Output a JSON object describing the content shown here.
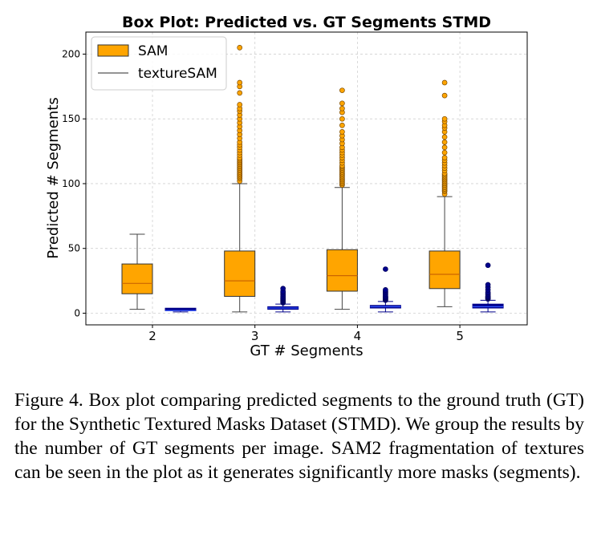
{
  "chart_data": {
    "type": "box",
    "title": "Box Plot: Predicted vs. GT Segments STMD",
    "xlabel": "GT # Segments",
    "ylabel": "Predicted # Segments",
    "categories": [
      "2",
      "3",
      "4",
      "5"
    ],
    "ylim": [
      -9,
      217
    ],
    "yticks": [
      0,
      50,
      100,
      150,
      200
    ],
    "grid": true,
    "legend": {
      "placement": "top-left",
      "entries": [
        "SAM",
        "textureSAM"
      ]
    },
    "series": [
      {
        "name": "SAM",
        "color": "#FFA500",
        "edge_color": "#333333",
        "flier_color": "#FFA500",
        "boxes": [
          {
            "category": "2",
            "whislo": 3,
            "q1": 15,
            "med": 23,
            "q3": 38,
            "whishi": 61,
            "fliers": []
          },
          {
            "category": "3",
            "whislo": 1,
            "q1": 13,
            "med": 25,
            "q3": 48,
            "whishi": 100,
            "fliers": [
              102,
              104,
              105,
              106,
              107,
              108,
              109,
              110,
              111,
              112,
              113,
              114,
              115,
              116,
              117,
              118,
              119,
              120,
              122,
              124,
              126,
              128,
              130,
              132,
              135,
              138,
              141,
              144,
              147,
              150,
              153,
              156,
              158,
              161,
              170,
              175,
              178,
              205
            ]
          },
          {
            "category": "4",
            "whislo": 3,
            "q1": 17,
            "med": 29,
            "q3": 49,
            "whishi": 97,
            "fliers": [
              99,
              100,
              101,
              102,
              103,
              104,
              105,
              106,
              107,
              108,
              109,
              110,
              111,
              112,
              113,
              114,
              116,
              118,
              120,
              122,
              124,
              126,
              128,
              131,
              134,
              137,
              140,
              145,
              150,
              155,
              158,
              162,
              172
            ]
          },
          {
            "category": "5",
            "whislo": 5,
            "q1": 19,
            "med": 30,
            "q3": 48,
            "whishi": 90,
            "fliers": [
              92,
              94,
              95,
              96,
              97,
              98,
              99,
              100,
              101,
              102,
              103,
              104,
              105,
              106,
              107,
              108,
              110,
              112,
              114,
              116,
              118,
              120,
              124,
              128,
              132,
              136,
              140,
              143,
              145,
              148,
              150,
              168,
              178
            ]
          }
        ]
      },
      {
        "name": "textureSAM",
        "color": "#00008B",
        "edge_color": "#00008B",
        "flier_color": "#00008B",
        "boxes": [
          {
            "category": "2",
            "whislo": 1,
            "q1": 2,
            "med": 2,
            "q3": 3,
            "whishi": 3,
            "fliers": []
          },
          {
            "category": "3",
            "whislo": 1,
            "q1": 3,
            "med": 4,
            "q3": 5,
            "whishi": 7,
            "fliers": [
              8,
              8.5,
              9,
              9.5,
              10,
              10.5,
              11,
              11.5,
              12,
              13,
              14,
              15,
              16,
              17,
              19
            ]
          },
          {
            "category": "4",
            "whislo": 1,
            "q1": 4,
            "med": 5,
            "q3": 6,
            "whishi": 9,
            "fliers": [
              10,
              10.5,
              11,
              11.5,
              12,
              12.5,
              13,
              14,
              15,
              16,
              17,
              18,
              34
            ]
          },
          {
            "category": "5",
            "whislo": 1,
            "q1": 4,
            "med": 5,
            "q3": 7,
            "whishi": 10,
            "fliers": [
              11,
              11.5,
              12,
              12.5,
              13,
              14,
              15,
              16,
              18,
              20,
              22,
              37
            ]
          }
        ]
      }
    ]
  },
  "caption": "Figure 4. Box plot comparing predicted segments to the ground truth (GT) for the Synthetic Textured Masks Dataset (STMD). We group the results by the number of GT segments per image. SAM2 fragmentation of textures can be seen in the plot as it generates significantly more masks (segments)."
}
